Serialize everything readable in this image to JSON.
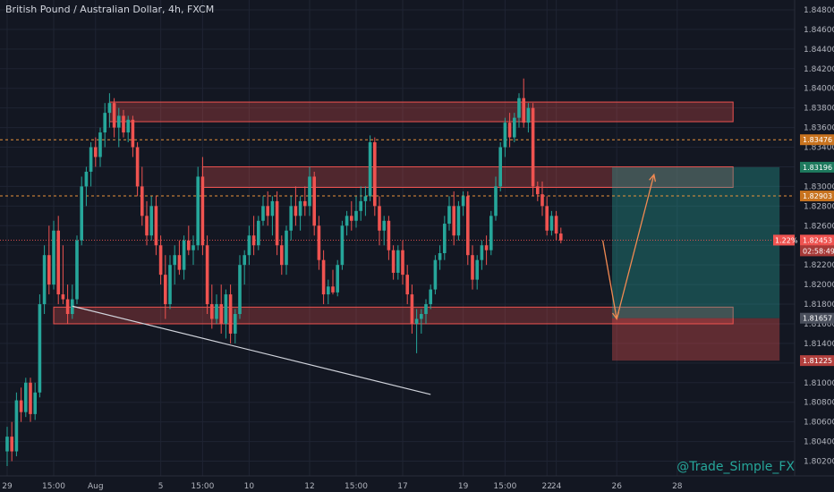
{
  "title": "British Pound / Australian Dollar, 4h, FXCM",
  "watermark": "@Trade_Simple_FX",
  "colors": {
    "background": "#131722",
    "up": "#26a69a",
    "down": "#ef5350",
    "grid": "#1f2433",
    "zone_fill": "rgba(239,83,80,0.28)",
    "zone_stroke": "#ef5350",
    "target_fill": "rgba(38,166,154,0.35)",
    "stop_fill": "rgba(239,83,80,0.35)",
    "arrow": "#f28a52",
    "dotted": "#e8923a",
    "trend": "#d1d4dc"
  },
  "chart_data": {
    "type": "candlestick",
    "symbol": "GBPAUD",
    "interval": "4h",
    "ylim": [
      1.8005,
      1.849
    ],
    "y_ticks": [
      "1.84800",
      "1.84600",
      "1.84400",
      "1.84200",
      "1.84000",
      "1.83800",
      "1.83600",
      "1.83400",
      "1.83200",
      "1.83000",
      "1.82800",
      "1.82600",
      "1.82400",
      "1.82200",
      "1.82000",
      "1.81800",
      "1.81600",
      "1.81400",
      "1.81200",
      "1.81000",
      "1.80800",
      "1.80600",
      "1.80400",
      "1.80200"
    ],
    "y_tick_values": [
      1.848,
      1.846,
      1.844,
      1.842,
      1.84,
      1.838,
      1.836,
      1.834,
      1.832,
      1.83,
      1.828,
      1.826,
      1.824,
      1.822,
      1.82,
      1.818,
      1.816,
      1.814,
      1.812,
      1.81,
      1.808,
      1.806,
      1.804,
      1.802
    ],
    "x_ticks": [
      {
        "label": "29",
        "index": 0
      },
      {
        "label": "15:00",
        "index": 10
      },
      {
        "label": "Aug",
        "index": 19
      },
      {
        "label": "5",
        "index": 33
      },
      {
        "label": "15:00",
        "index": 42
      },
      {
        "label": "10",
        "index": 52
      },
      {
        "label": "12",
        "index": 65
      },
      {
        "label": "15:00",
        "index": 75
      },
      {
        "label": "17",
        "index": 85
      },
      {
        "label": "19",
        "index": 98
      },
      {
        "label": "15:00",
        "index": 107
      },
      {
        "label": "22",
        "index": 116
      },
      {
        "label": "24",
        "index": 118
      },
      {
        "label": "26",
        "index": 131
      },
      {
        "label": "28",
        "index": 144
      }
    ],
    "candles": [
      [
        1.803,
        1.8055,
        1.8015,
        1.8045
      ],
      [
        1.8045,
        1.806,
        1.802,
        1.803
      ],
      [
        1.803,
        1.809,
        1.8025,
        1.8082
      ],
      [
        1.8082,
        1.8095,
        1.806,
        1.807
      ],
      [
        1.807,
        1.8105,
        1.8065,
        1.81
      ],
      [
        1.81,
        1.8105,
        1.806,
        1.8068
      ],
      [
        1.8068,
        1.81,
        1.8062,
        1.809
      ],
      [
        1.809,
        1.819,
        1.8085,
        1.818
      ],
      [
        1.818,
        1.824,
        1.817,
        1.823
      ],
      [
        1.823,
        1.826,
        1.819,
        1.82
      ],
      [
        1.82,
        1.8265,
        1.8195,
        1.8255
      ],
      [
        1.8255,
        1.827,
        1.818,
        1.819
      ],
      [
        1.819,
        1.824,
        1.818,
        1.8185
      ],
      [
        1.8185,
        1.82,
        1.816,
        1.817
      ],
      [
        1.817,
        1.82,
        1.8165,
        1.8185
      ],
      [
        1.8185,
        1.825,
        1.818,
        1.8245
      ],
      [
        1.8245,
        1.831,
        1.824,
        1.83
      ],
      [
        1.83,
        1.832,
        1.828,
        1.8315
      ],
      [
        1.8315,
        1.8345,
        1.83,
        1.834
      ],
      [
        1.834,
        1.835,
        1.832,
        1.833
      ],
      [
        1.833,
        1.836,
        1.832,
        1.8355
      ],
      [
        1.8355,
        1.8385,
        1.834,
        1.8375
      ],
      [
        1.8375,
        1.8395,
        1.836,
        1.8385
      ],
      [
        1.8385,
        1.839,
        1.835,
        1.836
      ],
      [
        1.836,
        1.838,
        1.834,
        1.8372
      ],
      [
        1.8372,
        1.8378,
        1.835,
        1.8355
      ],
      [
        1.8355,
        1.8372,
        1.8345,
        1.8368
      ],
      [
        1.8368,
        1.8372,
        1.833,
        1.834
      ],
      [
        1.834,
        1.8345,
        1.829,
        1.83
      ],
      [
        1.83,
        1.832,
        1.826,
        1.827
      ],
      [
        1.827,
        1.8285,
        1.824,
        1.825
      ],
      [
        1.825,
        1.829,
        1.8245,
        1.828
      ],
      [
        1.828,
        1.829,
        1.823,
        1.824
      ],
      [
        1.824,
        1.825,
        1.82,
        1.821
      ],
      [
        1.821,
        1.823,
        1.8165,
        1.818
      ],
      [
        1.818,
        1.823,
        1.8175,
        1.822
      ],
      [
        1.822,
        1.824,
        1.82,
        1.823
      ],
      [
        1.823,
        1.8245,
        1.821,
        1.8215
      ],
      [
        1.8215,
        1.825,
        1.8205,
        1.8245
      ],
      [
        1.8245,
        1.826,
        1.823,
        1.8235
      ],
      [
        1.8235,
        1.825,
        1.822,
        1.824
      ],
      [
        1.824,
        1.832,
        1.8235,
        1.831
      ],
      [
        1.831,
        1.833,
        1.823,
        1.824
      ],
      [
        1.824,
        1.825,
        1.817,
        1.818
      ],
      [
        1.818,
        1.82,
        1.8155,
        1.8165
      ],
      [
        1.8165,
        1.819,
        1.816,
        1.818
      ],
      [
        1.818,
        1.82,
        1.815,
        1.816
      ],
      [
        1.816,
        1.8195,
        1.8145,
        1.819
      ],
      [
        1.819,
        1.82,
        1.814,
        1.815
      ],
      [
        1.815,
        1.8175,
        1.814,
        1.817
      ],
      [
        1.817,
        1.823,
        1.8165,
        1.822
      ],
      [
        1.822,
        1.8235,
        1.82,
        1.823
      ],
      [
        1.823,
        1.826,
        1.822,
        1.825
      ],
      [
        1.825,
        1.827,
        1.823,
        1.824
      ],
      [
        1.824,
        1.827,
        1.8235,
        1.8265
      ],
      [
        1.8265,
        1.829,
        1.826,
        1.828
      ],
      [
        1.828,
        1.8295,
        1.826,
        1.827
      ],
      [
        1.827,
        1.829,
        1.825,
        1.8285
      ],
      [
        1.8285,
        1.8295,
        1.823,
        1.824
      ],
      [
        1.824,
        1.825,
        1.821,
        1.822
      ],
      [
        1.822,
        1.826,
        1.821,
        1.8255
      ],
      [
        1.8255,
        1.829,
        1.8245,
        1.828
      ],
      [
        1.828,
        1.83,
        1.826,
        1.827
      ],
      [
        1.827,
        1.829,
        1.8255,
        1.8285
      ],
      [
        1.8285,
        1.83,
        1.827,
        1.828
      ],
      [
        1.828,
        1.832,
        1.827,
        1.831
      ],
      [
        1.831,
        1.8315,
        1.825,
        1.826
      ],
      [
        1.826,
        1.827,
        1.8215,
        1.8225
      ],
      [
        1.8225,
        1.8235,
        1.818,
        1.819
      ],
      [
        1.819,
        1.8205,
        1.818,
        1.8198
      ],
      [
        1.8198,
        1.8215,
        1.819,
        1.8192
      ],
      [
        1.8192,
        1.8225,
        1.8188,
        1.822
      ],
      [
        1.822,
        1.8265,
        1.8215,
        1.826
      ],
      [
        1.826,
        1.8275,
        1.825,
        1.827
      ],
      [
        1.827,
        1.8285,
        1.8255,
        1.8265
      ],
      [
        1.8265,
        1.829,
        1.8258,
        1.8275
      ],
      [
        1.8275,
        1.83,
        1.8265,
        1.8285
      ],
      [
        1.8285,
        1.83,
        1.827,
        1.829
      ],
      [
        1.829,
        1.8352,
        1.8285,
        1.8345
      ],
      [
        1.8345,
        1.835,
        1.827,
        1.828
      ],
      [
        1.828,
        1.829,
        1.824,
        1.8255
      ],
      [
        1.8255,
        1.827,
        1.824,
        1.8265
      ],
      [
        1.8265,
        1.827,
        1.8225,
        1.8235
      ],
      [
        1.8235,
        1.824,
        1.8205,
        1.8212
      ],
      [
        1.8212,
        1.824,
        1.8205,
        1.8235
      ],
      [
        1.8235,
        1.8245,
        1.82,
        1.821
      ],
      [
        1.821,
        1.822,
        1.818,
        1.819
      ],
      [
        1.819,
        1.82,
        1.815,
        1.816
      ],
      [
        1.816,
        1.8175,
        1.813,
        1.8165
      ],
      [
        1.8165,
        1.8175,
        1.815,
        1.817
      ],
      [
        1.817,
        1.8185,
        1.816,
        1.818
      ],
      [
        1.818,
        1.82,
        1.8175,
        1.8195
      ],
      [
        1.8195,
        1.823,
        1.819,
        1.8225
      ],
      [
        1.8225,
        1.824,
        1.8215,
        1.8232
      ],
      [
        1.8232,
        1.827,
        1.8225,
        1.8262
      ],
      [
        1.8262,
        1.829,
        1.8255,
        1.828
      ],
      [
        1.828,
        1.8295,
        1.824,
        1.825
      ],
      [
        1.825,
        1.8285,
        1.8245,
        1.828
      ],
      [
        1.828,
        1.8295,
        1.827,
        1.829
      ],
      [
        1.829,
        1.8295,
        1.822,
        1.823
      ],
      [
        1.823,
        1.824,
        1.8195,
        1.8205
      ],
      [
        1.8205,
        1.823,
        1.8195,
        1.8225
      ],
      [
        1.8225,
        1.8245,
        1.8215,
        1.824
      ],
      [
        1.824,
        1.825,
        1.822,
        1.8235
      ],
      [
        1.8235,
        1.8275,
        1.823,
        1.827
      ],
      [
        1.827,
        1.831,
        1.8265,
        1.83
      ],
      [
        1.83,
        1.8345,
        1.8295,
        1.834
      ],
      [
        1.834,
        1.837,
        1.833,
        1.8365
      ],
      [
        1.8365,
        1.8375,
        1.834,
        1.835
      ],
      [
        1.835,
        1.8375,
        1.8345,
        1.837
      ],
      [
        1.837,
        1.8395,
        1.836,
        1.839
      ],
      [
        1.839,
        1.841,
        1.836,
        1.8365
      ],
      [
        1.8365,
        1.8385,
        1.8355,
        1.838
      ],
      [
        1.838,
        1.8385,
        1.829,
        1.83
      ],
      [
        1.83,
        1.8305,
        1.8285,
        1.8292
      ],
      [
        1.8292,
        1.8305,
        1.827,
        1.828
      ],
      [
        1.828,
        1.829,
        1.825,
        1.8255
      ],
      [
        1.8255,
        1.8275,
        1.825,
        1.827
      ],
      [
        1.827,
        1.8275,
        1.8245,
        1.8252
      ],
      [
        1.8252,
        1.8258,
        1.8242,
        1.8245
      ]
    ],
    "zones": [
      {
        "name": "resistance-zone-top",
        "x_start_index": 22,
        "x_end_index": 156,
        "y_low": 1.8366,
        "y_high": 1.8386
      },
      {
        "name": "resistance-zone-mid",
        "x_start_index": 42,
        "x_end_index": 156,
        "y_low": 1.8299,
        "y_high": 1.832
      },
      {
        "name": "support-zone",
        "x_start_index": 10,
        "x_end_index": 156,
        "y_low": 1.816,
        "y_high": 1.8177
      }
    ],
    "position": {
      "x_start_index": 130,
      "x_end_index": 166,
      "entry": 1.81657,
      "target": 1.83196,
      "stop": 1.81225
    },
    "dotted_levels": [
      1.83476,
      1.82903
    ],
    "current_price": 1.82453,
    "trendline": [
      {
        "index": 14,
        "price": 1.8178
      },
      {
        "index": 91,
        "price": 1.8088
      }
    ],
    "projection": [
      {
        "index": 128,
        "price": 1.8245
      },
      {
        "index": 131,
        "price": 1.8165
      },
      {
        "index": 139,
        "price": 1.8312
      }
    ],
    "price_labels": {
      "top_dotted": "1.83476",
      "target": "1.83196",
      "bottom_dotted": "1.82903",
      "current": "1.82453",
      "current_pct": "1.22%",
      "countdown": "02:58:49",
      "entry": "1.81657",
      "stop": "1.81225"
    }
  }
}
